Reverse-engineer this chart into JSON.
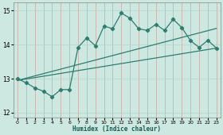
{
  "xlabel": "Humidex (Indice chaleur)",
  "xlim": [
    -0.5,
    23.5
  ],
  "ylim": [
    11.85,
    15.25
  ],
  "yticks": [
    12,
    13,
    14,
    15
  ],
  "xticks": [
    0,
    1,
    2,
    3,
    4,
    5,
    6,
    7,
    8,
    9,
    10,
    11,
    12,
    13,
    14,
    15,
    16,
    17,
    18,
    19,
    20,
    21,
    22,
    23
  ],
  "bg_color": "#cce8e0",
  "grid_color": "#b0d4cc",
  "line_color": "#2e7d6e",
  "main_line_x": [
    0,
    1,
    2,
    3,
    4,
    5,
    6,
    7,
    8,
    9,
    10,
    11,
    12,
    13,
    14,
    15,
    16,
    17,
    18,
    19,
    20,
    21,
    22,
    23
  ],
  "main_line_y": [
    13.0,
    12.88,
    12.73,
    12.63,
    12.47,
    12.68,
    12.68,
    13.92,
    14.2,
    13.97,
    14.55,
    14.47,
    14.93,
    14.78,
    14.47,
    14.42,
    14.6,
    14.42,
    14.75,
    14.5,
    14.12,
    13.92,
    14.13,
    13.9
  ],
  "line2_x": [
    0,
    23
  ],
  "line2_y": [
    12.95,
    14.48
  ],
  "line3_x": [
    0,
    23
  ],
  "line3_y": [
    12.95,
    13.9
  ]
}
